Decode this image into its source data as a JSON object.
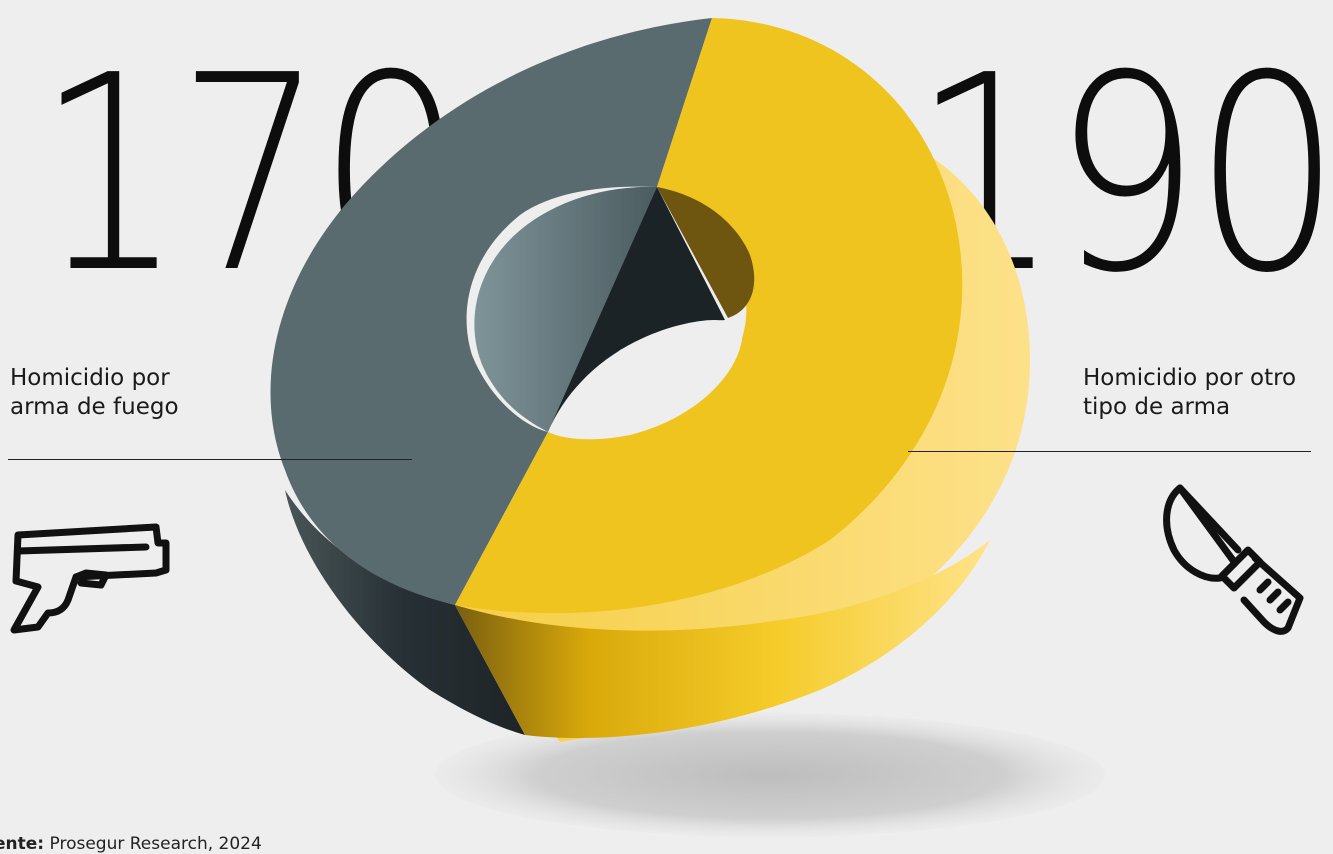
{
  "chart_data": {
    "type": "pie",
    "style": "3d-donut",
    "slices": [
      {
        "label": "Homicidio por arma de fuego",
        "value": 170,
        "color": "#5a6b6f"
      },
      {
        "label": "Homicidio por otro tipo de arma",
        "value": 190,
        "color": "#f0c41e"
      }
    ]
  },
  "left": {
    "number": "170",
    "label_line1": "Homicidio por",
    "label_line2": "arma de fuego",
    "icon": "gun-icon"
  },
  "right": {
    "number": "190",
    "label_line1": "Homicidio por otro",
    "label_line2": "tipo de arma",
    "icon": "knife-icon"
  },
  "source": {
    "prefix": "ente:",
    "text": "Prosegur Research, 2024"
  },
  "colors": {
    "background": "#eeeeee",
    "gray_slice": "#5a6b6f",
    "yellow_slice": "#f0c41e",
    "text": "#111111"
  }
}
